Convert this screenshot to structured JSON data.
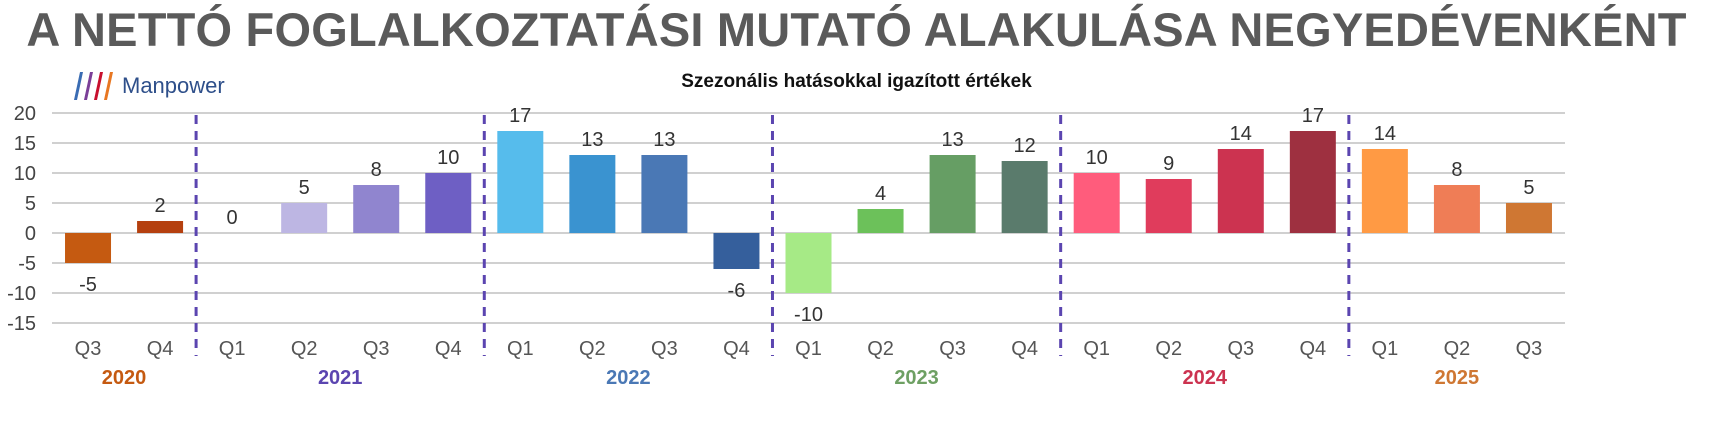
{
  "header": {
    "title": "A NETTÓ FOGLALKOZTATÁSI MUTATÓ ALAKULÁSA NEGYEDÉVENKÉNT",
    "subtitle": "Szezonális hatásokkal igazított értékek",
    "logo_text": "Manpower"
  },
  "logo_colors": [
    "#3a6cb3",
    "#7b3f98",
    "#c8102e",
    "#e87722"
  ],
  "chart_data": {
    "type": "bar",
    "title": "A NETTÓ FOGLALKOZTATÁSI MUTATÓ ALAKULÁSA NEGYEDÉVENKÉNT",
    "subtitle": "Szezonális hatásokkal igazított értékek",
    "xlabel": "",
    "ylabel": "",
    "ylim": [
      -15,
      20
    ],
    "yticks": [
      20,
      15,
      10,
      5,
      0,
      -5,
      -10,
      -15
    ],
    "grid": true,
    "legend": "none",
    "categories": [
      "Q3",
      "Q4",
      "Q1",
      "Q2",
      "Q3",
      "Q4",
      "Q1",
      "Q2",
      "Q3",
      "Q4",
      "Q1",
      "Q2",
      "Q3",
      "Q4",
      "Q1",
      "Q2",
      "Q3",
      "Q4",
      "Q1",
      "Q2",
      "Q3"
    ],
    "values": [
      -5,
      2,
      0,
      5,
      8,
      10,
      17,
      13,
      13,
      -6,
      -10,
      4,
      13,
      12,
      10,
      9,
      14,
      17,
      14,
      8,
      5
    ],
    "bar_colors": [
      "#c55a11",
      "#b5400f",
      "#bdb6e3",
      "#bdb6e3",
      "#9085cf",
      "#6e5fc4",
      "#56bcec",
      "#3a93d0",
      "#4a78b5",
      "#355f9c",
      "#a6ea86",
      "#6cc15a",
      "#669e64",
      "#5a7b6c",
      "#ff5c7c",
      "#e03c5c",
      "#cc3350",
      "#9e3040",
      "#ff9a44",
      "#ef7d56",
      "#cf7733"
    ],
    "year_groups": [
      {
        "year": "2020",
        "start": 0,
        "count": 2,
        "color": "#c55a11"
      },
      {
        "year": "2021",
        "start": 2,
        "count": 4,
        "color": "#5b45b0"
      },
      {
        "year": "2022",
        "start": 6,
        "count": 4,
        "color": "#4a78b5"
      },
      {
        "year": "2023",
        "start": 10,
        "count": 4,
        "color": "#6ea063"
      },
      {
        "year": "2024",
        "start": 14,
        "count": 4,
        "color": "#cc3350"
      },
      {
        "year": "2025",
        "start": 18,
        "count": 3,
        "color": "#cf7733"
      }
    ],
    "separator_color": "#5b45b0",
    "grid_color": "#d0d0d0"
  }
}
